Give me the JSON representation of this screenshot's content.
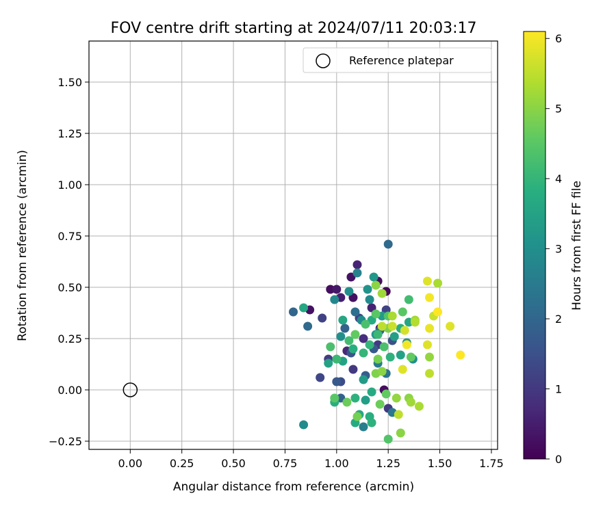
{
  "chart_data": {
    "type": "scatter",
    "title": "FOV centre drift starting at 2024/07/11 20:03:17",
    "xlabel": "Angular distance from reference (arcmin)",
    "ylabel": "Rotation from reference (arcmin)",
    "xlim": [
      -0.2,
      1.78
    ],
    "ylim": [
      -0.29,
      1.7
    ],
    "xticks": [
      0.0,
      0.25,
      0.5,
      0.75,
      1.0,
      1.25,
      1.5,
      1.75
    ],
    "xtick_labels": [
      "0.00",
      "0.25",
      "0.50",
      "0.75",
      "1.00",
      "1.25",
      "1.50",
      "1.75"
    ],
    "yticks": [
      -0.25,
      0.0,
      0.25,
      0.5,
      0.75,
      1.0,
      1.25,
      1.5
    ],
    "ytick_labels": [
      "−0.25",
      "0.00",
      "0.25",
      "0.50",
      "0.75",
      "1.00",
      "1.25",
      "1.50"
    ],
    "grid": true,
    "legend": {
      "position": "top-right",
      "entries": [
        "Reference platepar"
      ]
    },
    "colormap": "viridis",
    "colorbar": {
      "label": "Hours from first FF file",
      "range": [
        0,
        6.1
      ],
      "ticks": [
        0,
        1,
        2,
        3,
        4,
        5,
        6
      ],
      "tick_labels": [
        "0",
        "1",
        "2",
        "3",
        "4",
        "5",
        "6"
      ]
    },
    "reference_point": {
      "x": 0.0,
      "y": 0.0
    },
    "series": [
      {
        "points": [
          [
            1.1,
            0.61,
            0.6
          ],
          [
            1.07,
            0.55,
            0.3
          ],
          [
            1.2,
            0.53,
            0.2
          ],
          [
            1.24,
            0.48,
            0.1
          ],
          [
            1.02,
            0.45,
            0.5
          ],
          [
            0.97,
            0.49,
            0.2
          ],
          [
            1.0,
            0.49,
            0.4
          ],
          [
            1.08,
            0.45,
            0.3
          ],
          [
            1.17,
            0.4,
            0.6
          ],
          [
            1.23,
            0.0,
            0.2
          ],
          [
            0.87,
            0.39,
            0.3
          ],
          [
            1.21,
            0.3,
            0.4
          ],
          [
            1.13,
            0.25,
            0.8
          ],
          [
            1.05,
            0.19,
            0.7
          ],
          [
            1.11,
            0.35,
            1.2
          ],
          [
            1.2,
            0.22,
            1.0
          ],
          [
            1.25,
            -0.09,
            1.0
          ],
          [
            0.93,
            0.35,
            1.2
          ],
          [
            0.92,
            0.06,
            1.3
          ],
          [
            0.96,
            0.15,
            1.1
          ],
          [
            1.02,
            0.04,
            1.4
          ],
          [
            1.08,
            0.1,
            1.0
          ],
          [
            1.24,
            0.39,
            1.2
          ],
          [
            1.27,
            0.24,
            1.5
          ],
          [
            1.18,
            0.2,
            1.7
          ],
          [
            1.04,
            0.3,
            1.9
          ],
          [
            1.07,
            0.18,
            1.6
          ],
          [
            1.14,
            0.07,
            1.8
          ],
          [
            1.25,
            0.71,
            2.1
          ],
          [
            0.79,
            0.38,
            2.0
          ],
          [
            0.86,
            0.31,
            2.1
          ],
          [
            1.02,
            -0.04,
            1.9
          ],
          [
            1.0,
            0.04,
            1.7
          ],
          [
            1.09,
            0.38,
            2.2
          ],
          [
            1.21,
            0.29,
            2.0
          ],
          [
            1.24,
            0.08,
            2.3
          ],
          [
            1.2,
            0.13,
            2.5
          ],
          [
            1.27,
            -0.11,
            2.4
          ],
          [
            1.13,
            -0.18,
            2.6
          ],
          [
            1.1,
            0.57,
            2.7
          ],
          [
            0.84,
            -0.17,
            2.9
          ],
          [
            1.15,
            0.49,
            3.1
          ],
          [
            1.18,
            0.55,
            3.2
          ],
          [
            1.16,
            0.44,
            2.9
          ],
          [
            0.99,
            0.44,
            2.8
          ],
          [
            1.06,
            0.48,
            3.0
          ],
          [
            1.12,
            0.34,
            2.9
          ],
          [
            1.22,
            0.36,
            3.3
          ],
          [
            1.28,
            0.26,
            3.4
          ],
          [
            1.34,
            0.23,
            3.1
          ],
          [
            1.31,
            0.17,
            3.5
          ],
          [
            1.37,
            0.15,
            3.0
          ],
          [
            1.19,
            0.27,
            3.2
          ],
          [
            1.13,
            0.05,
            3.3
          ],
          [
            1.02,
            0.26,
            3.0
          ],
          [
            1.14,
            -0.05,
            3.4
          ],
          [
            1.09,
            -0.16,
            3.7
          ],
          [
            1.11,
            -0.12,
            3.6
          ],
          [
            1.16,
            -0.13,
            3.8
          ],
          [
            1.17,
            -0.16,
            3.9
          ],
          [
            0.84,
            0.4,
            3.6
          ],
          [
            1.03,
            0.14,
            3.5
          ],
          [
            0.99,
            -0.06,
            3.8
          ],
          [
            1.09,
            -0.04,
            3.9
          ],
          [
            1.17,
            -0.01,
            3.7
          ],
          [
            1.13,
            0.18,
            4.0
          ],
          [
            1.0,
            0.15,
            4.1
          ],
          [
            1.03,
            0.34,
            3.6
          ],
          [
            1.08,
            0.2,
            3.8
          ],
          [
            0.96,
            0.13,
            3.5
          ],
          [
            1.17,
            0.34,
            3.7
          ],
          [
            1.26,
            0.16,
            3.9
          ],
          [
            1.31,
            0.3,
            3.8
          ],
          [
            1.35,
            0.33,
            3.6
          ],
          [
            1.35,
            0.44,
            4.2
          ],
          [
            1.19,
            0.37,
            4.5
          ],
          [
            1.23,
            0.21,
            4.3
          ],
          [
            1.16,
            0.22,
            4.0
          ],
          [
            1.25,
            0.36,
            4.4
          ],
          [
            1.2,
            0.27,
            4.1
          ],
          [
            1.09,
            0.27,
            4.6
          ],
          [
            1.14,
            0.32,
            4.3
          ],
          [
            1.06,
            0.24,
            4.2
          ],
          [
            0.99,
            -0.04,
            4.5
          ],
          [
            1.05,
            -0.06,
            4.7
          ],
          [
            1.1,
            -0.13,
            4.8
          ],
          [
            1.19,
            0.08,
            4.9
          ],
          [
            1.21,
            -0.07,
            4.7
          ],
          [
            1.24,
            -0.02,
            4.6
          ],
          [
            1.32,
            0.38,
            4.5
          ],
          [
            1.36,
            0.16,
            4.6
          ],
          [
            1.25,
            0.3,
            4.9
          ],
          [
            1.19,
            0.51,
            5.0
          ],
          [
            1.22,
            0.47,
            5.2
          ],
          [
            1.27,
            0.36,
            5.3
          ],
          [
            1.29,
            -0.04,
            5.1
          ],
          [
            1.35,
            -0.04,
            5.0
          ],
          [
            1.36,
            -0.06,
            5.2
          ],
          [
            1.4,
            -0.08,
            5.3
          ],
          [
            1.31,
            -0.21,
            5.0
          ],
          [
            1.25,
            -0.24,
            4.4
          ],
          [
            1.3,
            -0.12,
            5.5
          ],
          [
            1.22,
            0.09,
            5.0
          ],
          [
            1.2,
            0.15,
            4.8
          ],
          [
            1.45,
            0.16,
            5.1
          ],
          [
            1.49,
            0.52,
            5.3
          ],
          [
            1.38,
            0.34,
            5.2
          ],
          [
            1.33,
            0.29,
            5.7
          ],
          [
            1.32,
            0.1,
            5.8
          ],
          [
            1.44,
            0.22,
            5.8
          ],
          [
            1.45,
            0.08,
            5.5
          ],
          [
            1.47,
            0.36,
            5.6
          ],
          [
            1.44,
            0.53,
            5.8
          ],
          [
            1.45,
            0.45,
            6.0
          ],
          [
            1.49,
            0.38,
            6.1
          ],
          [
            1.45,
            0.3,
            5.9
          ],
          [
            1.34,
            0.22,
            6.0
          ],
          [
            1.55,
            0.31,
            5.8
          ],
          [
            1.6,
            0.17,
            6.1
          ],
          [
            1.38,
            0.33,
            5.4
          ],
          [
            1.27,
            0.31,
            5.6
          ],
          [
            1.22,
            0.31,
            5.5
          ],
          [
            0.97,
            0.21,
            4.3
          ]
        ]
      }
    ]
  }
}
